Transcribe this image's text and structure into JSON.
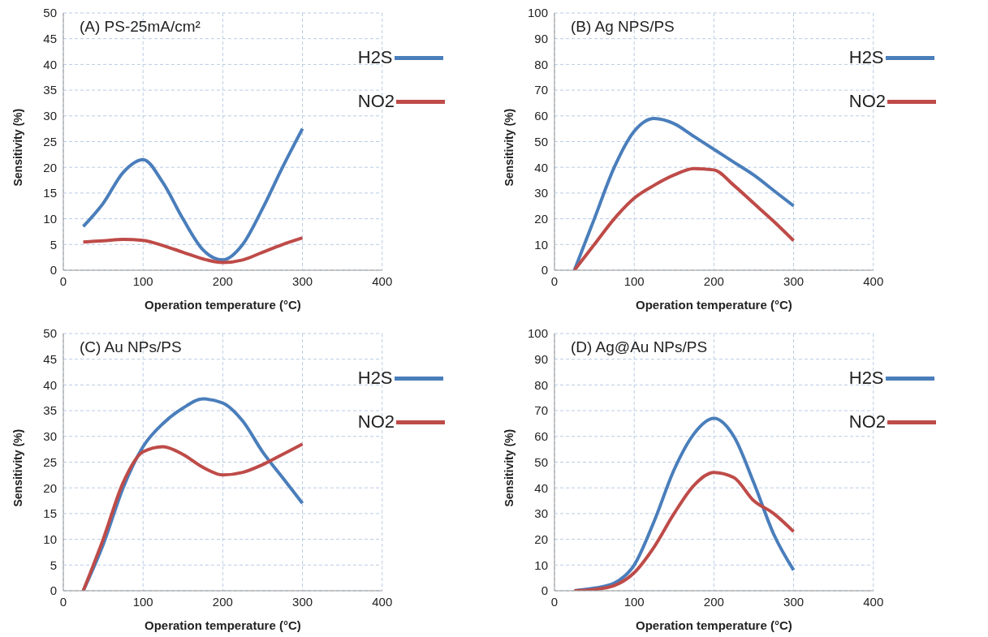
{
  "chart_data": [
    {
      "type": "line",
      "title": "(A)  PS-25mA/cm²",
      "xlabel": "Operation temperature (°C)",
      "ylabel": "Sensitivity (%)",
      "x": [
        25,
        50,
        75,
        100,
        125,
        150,
        175,
        200,
        225,
        250,
        275,
        300
      ],
      "xlim": [
        0,
        400
      ],
      "xticks": [
        0,
        100,
        200,
        300,
        400
      ],
      "ylim": [
        0,
        50
      ],
      "yticks": [
        0,
        5,
        10,
        15,
        20,
        25,
        30,
        35,
        40,
        45,
        50
      ],
      "grid": true,
      "legend": "top right",
      "marker": "none",
      "line_style": "solid",
      "series": [
        {
          "name": "H2S",
          "color": "#4a7ebb",
          "values": [
            8.5,
            13,
            19,
            21.5,
            17,
            10,
            4,
            2,
            5,
            12,
            20,
            27.5
          ]
        },
        {
          "name": "NO2",
          "color": "#be4b48",
          "values": [
            5.5,
            5.7,
            6,
            5.8,
            4.8,
            3.5,
            2.2,
            1.5,
            2,
            3.5,
            5,
            6.3
          ]
        }
      ]
    },
    {
      "type": "line",
      "title": "(B) Ag NPS/PS",
      "xlabel": "Operation temperature (°C)",
      "ylabel": "Sensitivity (%)",
      "x": [
        25,
        50,
        75,
        100,
        125,
        150,
        175,
        200,
        225,
        250,
        275,
        300
      ],
      "xlim": [
        0,
        400
      ],
      "xticks": [
        0,
        100,
        200,
        300,
        400
      ],
      "ylim": [
        0,
        100
      ],
      "yticks": [
        0,
        10,
        20,
        30,
        40,
        50,
        60,
        70,
        80,
        90,
        100
      ],
      "grid": true,
      "legend": "top right",
      "marker": "none",
      "line_style": "solid",
      "series": [
        {
          "name": "H2S",
          "color": "#4a7ebb",
          "values": [
            0,
            20,
            40,
            54,
            59,
            57,
            52,
            47,
            42,
            37,
            31,
            25
          ]
        },
        {
          "name": "NO2",
          "color": "#be4b48",
          "values": [
            0,
            10,
            20,
            28,
            33,
            37,
            39.5,
            39,
            33,
            26,
            19,
            11.5
          ]
        }
      ]
    },
    {
      "type": "line",
      "title": "(C) Au NPs/PS",
      "xlabel": "Operation temperature (°C)",
      "ylabel": "Sensitivity (%)",
      "x": [
        25,
        50,
        75,
        100,
        125,
        150,
        175,
        200,
        225,
        250,
        275,
        300
      ],
      "xlim": [
        0,
        400
      ],
      "xticks": [
        0,
        100,
        200,
        300,
        400
      ],
      "ylim": [
        0,
        50
      ],
      "yticks": [
        0,
        5,
        10,
        15,
        20,
        25,
        30,
        35,
        40,
        45,
        50
      ],
      "grid": true,
      "legend": "top right",
      "marker": "none",
      "line_style": "solid",
      "series": [
        {
          "name": "H2S",
          "color": "#4a7ebb",
          "values": [
            0,
            9,
            20,
            28,
            32.5,
            35.5,
            37.3,
            36.5,
            33,
            27,
            22,
            17
          ]
        },
        {
          "name": "NO2",
          "color": "#be4b48",
          "values": [
            0,
            10,
            21,
            27,
            28,
            26.5,
            24,
            22.5,
            23,
            24.5,
            26.5,
            28.5
          ]
        }
      ]
    },
    {
      "type": "line",
      "title": "(D) Ag@Au NPs/PS",
      "xlabel": "Operation temperature (°C)",
      "ylabel": "Sensitivity (%)",
      "x": [
        25,
        50,
        75,
        100,
        125,
        150,
        175,
        200,
        225,
        250,
        275,
        300
      ],
      "xlim": [
        0,
        400
      ],
      "xticks": [
        0,
        100,
        200,
        300,
        400
      ],
      "ylim": [
        0,
        100
      ],
      "yticks": [
        0,
        10,
        20,
        30,
        40,
        50,
        60,
        70,
        80,
        90,
        100
      ],
      "grid": true,
      "legend": "top right",
      "marker": "none",
      "line_style": "solid",
      "series": [
        {
          "name": "H2S",
          "color": "#4a7ebb",
          "values": [
            0,
            1,
            3,
            10,
            27,
            47,
            61,
            67,
            60,
            42,
            22,
            8
          ]
        },
        {
          "name": "NO2",
          "color": "#be4b48",
          "values": [
            0,
            0.5,
            2,
            7,
            17,
            30,
            41,
            46,
            44,
            35,
            30,
            23
          ]
        }
      ]
    }
  ]
}
